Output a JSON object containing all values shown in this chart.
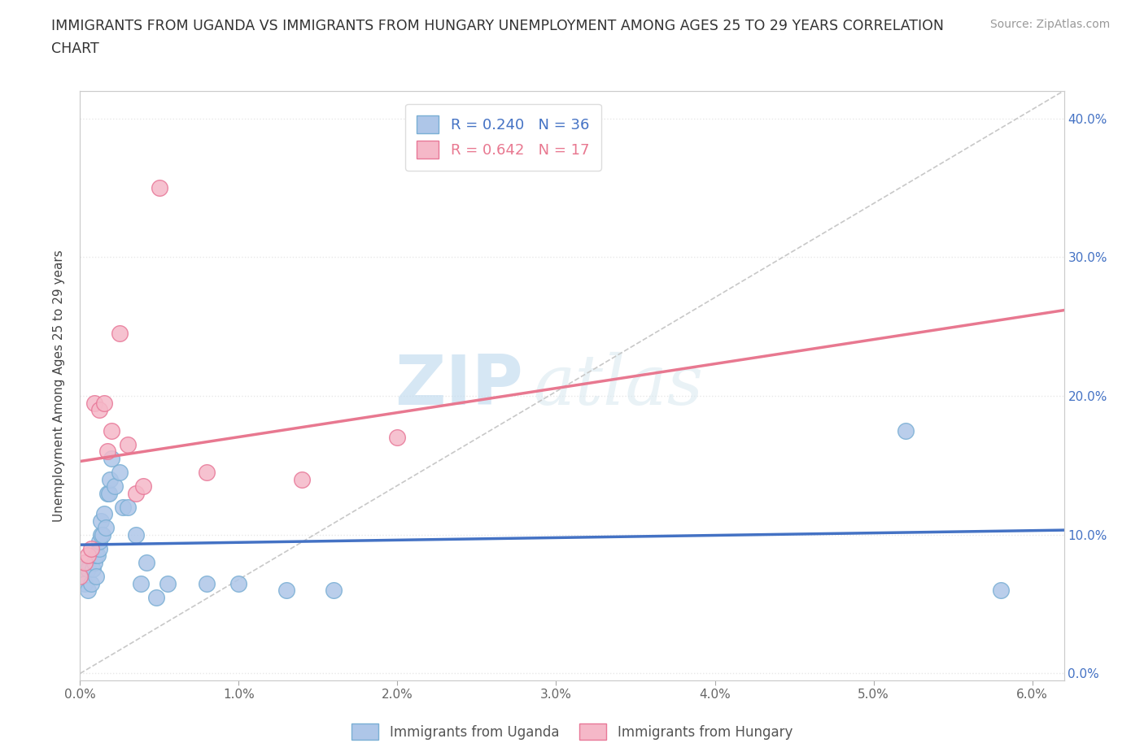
{
  "title_line1": "IMMIGRANTS FROM UGANDA VS IMMIGRANTS FROM HUNGARY UNEMPLOYMENT AMONG AGES 25 TO 29 YEARS CORRELATION",
  "title_line2": "CHART",
  "source": "Source: ZipAtlas.com",
  "xlabel_ticks": [
    "0.0%",
    "1.0%",
    "2.0%",
    "3.0%",
    "4.0%",
    "5.0%",
    "6.0%"
  ],
  "ylabel_ticks": [
    "10.0%",
    "20.0%",
    "30.0%",
    "40.0%"
  ],
  "xlim": [
    0.0,
    0.062
  ],
  "ylim": [
    -0.005,
    0.42
  ],
  "ylabel": "Unemployment Among Ages 25 to 29 years",
  "uganda_color": "#aec6e8",
  "hungary_color": "#f5b8c8",
  "uganda_edge": "#7aafd4",
  "hungary_edge": "#e87898",
  "trendline_uganda": "#4472c4",
  "trendline_hungary": "#e87890",
  "diagonal_color": "#c8c8c8",
  "watermark_zip": "ZIP",
  "watermark_atlas": "atlas",
  "R_uganda": 0.24,
  "N_uganda": 36,
  "R_hungary": 0.642,
  "N_hungary": 17,
  "uganda_x": [
    0.0,
    0.0003,
    0.0005,
    0.0005,
    0.0007,
    0.0008,
    0.0009,
    0.001,
    0.001,
    0.0011,
    0.0012,
    0.0012,
    0.0013,
    0.0013,
    0.0014,
    0.0015,
    0.0016,
    0.0017,
    0.0018,
    0.0019,
    0.002,
    0.0022,
    0.0025,
    0.0027,
    0.003,
    0.0035,
    0.0038,
    0.0042,
    0.0048,
    0.0055,
    0.008,
    0.01,
    0.013,
    0.016,
    0.052,
    0.058
  ],
  "uganda_y": [
    0.075,
    0.065,
    0.075,
    0.06,
    0.065,
    0.075,
    0.08,
    0.07,
    0.085,
    0.085,
    0.09,
    0.095,
    0.1,
    0.11,
    0.1,
    0.115,
    0.105,
    0.13,
    0.13,
    0.14,
    0.155,
    0.135,
    0.145,
    0.12,
    0.12,
    0.1,
    0.065,
    0.08,
    0.055,
    0.065,
    0.065,
    0.065,
    0.06,
    0.06,
    0.175,
    0.06
  ],
  "hungary_x": [
    0.0,
    0.0003,
    0.0005,
    0.0007,
    0.0009,
    0.0012,
    0.0015,
    0.0017,
    0.002,
    0.0025,
    0.003,
    0.0035,
    0.004,
    0.005,
    0.008,
    0.014,
    0.02
  ],
  "hungary_y": [
    0.07,
    0.08,
    0.085,
    0.09,
    0.195,
    0.19,
    0.195,
    0.16,
    0.175,
    0.245,
    0.165,
    0.13,
    0.135,
    0.35,
    0.145,
    0.14,
    0.17
  ],
  "background_color": "#ffffff",
  "grid_color": "#e8e8e8"
}
